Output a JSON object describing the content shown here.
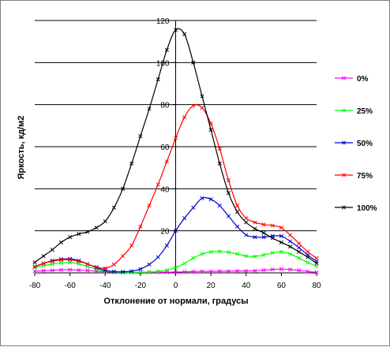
{
  "chart_data": {
    "type": "line",
    "xlabel": "Отклонение от нормали, градусы",
    "ylabel": "Яркость, кд/м2",
    "xlim": [
      -80,
      80
    ],
    "ylim": [
      0,
      120
    ],
    "xticks": [
      -80,
      -60,
      -40,
      -20,
      0,
      20,
      40,
      60,
      80
    ],
    "yticks": [
      20,
      40,
      60,
      80,
      100,
      120
    ],
    "grid": "horizontal",
    "legend_position": "right",
    "series": [
      {
        "name": "0%",
        "color": "#ff00ff",
        "points": [
          [
            -80,
            0.8
          ],
          [
            -75,
            1.0
          ],
          [
            -70,
            1.2
          ],
          [
            -65,
            1.4
          ],
          [
            -60,
            1.5
          ],
          [
            -55,
            1.3
          ],
          [
            -50,
            1.1
          ],
          [
            -45,
            0.8
          ],
          [
            -40,
            0.5
          ],
          [
            -35,
            0.3
          ],
          [
            -30,
            0.2
          ],
          [
            -25,
            0.2
          ],
          [
            -20,
            0.2
          ],
          [
            -15,
            0.2
          ],
          [
            -10,
            0.3
          ],
          [
            -5,
            0.3
          ],
          [
            0,
            0.4
          ],
          [
            5,
            0.5
          ],
          [
            10,
            0.6
          ],
          [
            15,
            0.7
          ],
          [
            20,
            0.7
          ],
          [
            25,
            0.8
          ],
          [
            30,
            0.8
          ],
          [
            35,
            0.9
          ],
          [
            40,
            0.9
          ],
          [
            45,
            1.0
          ],
          [
            50,
            1.3
          ],
          [
            55,
            1.6
          ],
          [
            60,
            1.8
          ],
          [
            65,
            1.6
          ],
          [
            70,
            1.2
          ],
          [
            75,
            0.6
          ],
          [
            80,
            0.3
          ]
        ]
      },
      {
        "name": "25%",
        "color": "#00ff00",
        "points": [
          [
            -80,
            2.5
          ],
          [
            -75,
            3.5
          ],
          [
            -70,
            4.2
          ],
          [
            -65,
            4.8
          ],
          [
            -60,
            4.9
          ],
          [
            -55,
            4.3
          ],
          [
            -50,
            3.0
          ],
          [
            -45,
            1.8
          ],
          [
            -40,
            0.8
          ],
          [
            -35,
            0.4
          ],
          [
            -30,
            0.2
          ],
          [
            -25,
            0.2
          ],
          [
            -20,
            0.3
          ],
          [
            -15,
            0.4
          ],
          [
            -10,
            0.7
          ],
          [
            -5,
            1.3
          ],
          [
            0,
            2.5
          ],
          [
            5,
            4.5
          ],
          [
            10,
            7.0
          ],
          [
            15,
            9.0
          ],
          [
            20,
            10.0
          ],
          [
            25,
            10.2
          ],
          [
            30,
            9.8
          ],
          [
            35,
            9.0
          ],
          [
            40,
            8.0
          ],
          [
            45,
            7.8
          ],
          [
            50,
            8.5
          ],
          [
            55,
            9.5
          ],
          [
            60,
            10.0
          ],
          [
            65,
            9.0
          ],
          [
            70,
            7.0
          ],
          [
            75,
            5.0
          ],
          [
            80,
            3.0
          ]
        ]
      },
      {
        "name": "50%",
        "color": "#0000cc",
        "points": [
          [
            -80,
            3.0
          ],
          [
            -75,
            4.5
          ],
          [
            -70,
            5.8
          ],
          [
            -65,
            6.5
          ],
          [
            -60,
            6.7
          ],
          [
            -55,
            5.8
          ],
          [
            -50,
            4.2
          ],
          [
            -45,
            2.5
          ],
          [
            -40,
            1.2
          ],
          [
            -35,
            0.6
          ],
          [
            -30,
            0.5
          ],
          [
            -25,
            0.8
          ],
          [
            -20,
            1.8
          ],
          [
            -15,
            4.0
          ],
          [
            -10,
            7.5
          ],
          [
            -5,
            13.0
          ],
          [
            0,
            20.0
          ],
          [
            5,
            26.0
          ],
          [
            10,
            31.0
          ],
          [
            15,
            35.5
          ],
          [
            20,
            35.0
          ],
          [
            25,
            32.0
          ],
          [
            30,
            27.0
          ],
          [
            35,
            22.0
          ],
          [
            40,
            18.0
          ],
          [
            45,
            17.0
          ],
          [
            50,
            17.0
          ],
          [
            55,
            17.5
          ],
          [
            60,
            17.5
          ],
          [
            65,
            15.0
          ],
          [
            70,
            12.0
          ],
          [
            75,
            8.5
          ],
          [
            80,
            5.5
          ]
        ]
      },
      {
        "name": "75%",
        "color": "#ff0000",
        "points": [
          [
            -80,
            3.0
          ],
          [
            -75,
            4.5
          ],
          [
            -70,
            5.5
          ],
          [
            -65,
            6.2
          ],
          [
            -60,
            6.2
          ],
          [
            -55,
            5.5
          ],
          [
            -50,
            4.2
          ],
          [
            -45,
            2.8
          ],
          [
            -40,
            2.2
          ],
          [
            -35,
            4.0
          ],
          [
            -30,
            8.0
          ],
          [
            -25,
            13.0
          ],
          [
            -20,
            22.0
          ],
          [
            -15,
            32.0
          ],
          [
            -10,
            42.0
          ],
          [
            -5,
            53.0
          ],
          [
            0,
            64.0
          ],
          [
            5,
            74.0
          ],
          [
            10,
            79.5
          ],
          [
            15,
            78.5
          ],
          [
            20,
            71.0
          ],
          [
            25,
            59.0
          ],
          [
            30,
            44.0
          ],
          [
            35,
            32.0
          ],
          [
            40,
            26.0
          ],
          [
            45,
            24.0
          ],
          [
            50,
            23.0
          ],
          [
            55,
            22.5
          ],
          [
            60,
            21.5
          ],
          [
            65,
            18.0
          ],
          [
            70,
            14.0
          ],
          [
            75,
            10.0
          ],
          [
            80,
            7.0
          ]
        ]
      },
      {
        "name": "100%",
        "color": "#000000",
        "points": [
          [
            -80,
            5.0
          ],
          [
            -75,
            8.0
          ],
          [
            -70,
            11.0
          ],
          [
            -65,
            14.5
          ],
          [
            -60,
            17.0
          ],
          [
            -55,
            18.5
          ],
          [
            -50,
            19.5
          ],
          [
            -45,
            21.5
          ],
          [
            -40,
            24.5
          ],
          [
            -35,
            31.0
          ],
          [
            -30,
            40.0
          ],
          [
            -25,
            52.0
          ],
          [
            -20,
            65.0
          ],
          [
            -15,
            78.0
          ],
          [
            -10,
            92.0
          ],
          [
            -5,
            106.0
          ],
          [
            0,
            115.5
          ],
          [
            5,
            113.5
          ],
          [
            10,
            100.0
          ],
          [
            15,
            84.0
          ],
          [
            20,
            68.0
          ],
          [
            25,
            52.0
          ],
          [
            30,
            38.0
          ],
          [
            35,
            29.0
          ],
          [
            40,
            24.0
          ],
          [
            45,
            21.0
          ],
          [
            50,
            19.0
          ],
          [
            55,
            16.5
          ],
          [
            60,
            14.5
          ],
          [
            65,
            12.5
          ],
          [
            70,
            10.0
          ],
          [
            75,
            7.5
          ],
          [
            80,
            4.5
          ]
        ]
      }
    ]
  }
}
